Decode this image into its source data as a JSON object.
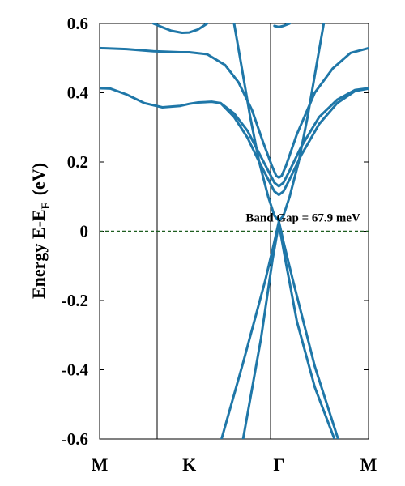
{
  "chart_data": {
    "type": "line",
    "title": "",
    "xlabel": "",
    "ylabel": "Energy E-E",
    "ylabel_subscript": "F",
    "ylabel_unit": "(eV)",
    "ylim": [
      -0.6,
      0.6
    ],
    "yticks": [
      -0.6,
      -0.4,
      -0.2,
      0,
      0.2,
      0.4,
      0.6
    ],
    "ytick_labels": [
      "-0.6",
      "-0.4",
      "-0.2",
      "0",
      "0.2",
      "0.4",
      "0.6"
    ],
    "xlim": [
      0,
      3
    ],
    "xticks": [
      {
        "x": 0,
        "label": "M"
      },
      {
        "x": 1,
        "label": "K"
      },
      {
        "x": 2,
        "label": "Γ"
      },
      {
        "x": 3,
        "label": "M"
      }
    ],
    "fermi_level": 0,
    "annotation": {
      "text": "Band Gap = 67.9 meV",
      "x": 1.63,
      "y": 0.028
    },
    "colors": {
      "band": "#1f77a8",
      "fermi": "#1e5e20",
      "frame": "#000000"
    },
    "series": [
      {
        "points": [
          [
            0,
            0.413
          ],
          [
            0.12,
            0.412
          ],
          [
            0.3,
            0.395
          ],
          [
            0.5,
            0.37
          ],
          [
            0.7,
            0.358
          ],
          [
            0.9,
            0.362
          ],
          [
            1.0,
            0.368
          ],
          [
            1.1,
            0.372
          ],
          [
            1.25,
            0.374
          ],
          [
            1.35,
            0.37
          ],
          [
            1.5,
            0.33
          ],
          [
            1.65,
            0.27
          ],
          [
            1.78,
            0.2
          ],
          [
            1.88,
            0.15
          ],
          [
            1.95,
            0.115
          ],
          [
            2.0,
            0.105
          ],
          [
            2.05,
            0.115
          ],
          [
            2.12,
            0.15
          ],
          [
            2.25,
            0.22
          ],
          [
            2.45,
            0.31
          ],
          [
            2.65,
            0.37
          ],
          [
            2.85,
            0.405
          ],
          [
            3.0,
            0.412
          ]
        ]
      },
      {
        "points": [
          [
            1.35,
            0.37
          ],
          [
            1.5,
            0.34
          ],
          [
            1.65,
            0.29
          ],
          [
            1.78,
            0.225
          ],
          [
            1.88,
            0.175
          ],
          [
            1.95,
            0.14
          ],
          [
            2.0,
            0.13
          ],
          [
            2.05,
            0.14
          ],
          [
            2.12,
            0.175
          ],
          [
            2.25,
            0.245
          ],
          [
            2.45,
            0.33
          ],
          [
            2.65,
            0.38
          ],
          [
            2.85,
            0.408
          ],
          [
            3.0,
            0.413
          ]
        ]
      },
      {
        "points": [
          [
            0,
            0.529
          ],
          [
            0.3,
            0.526
          ],
          [
            0.6,
            0.52
          ],
          [
            0.9,
            0.517
          ],
          [
            1.0,
            0.517
          ],
          [
            1.2,
            0.511
          ],
          [
            1.4,
            0.48
          ],
          [
            1.55,
            0.43
          ],
          [
            1.7,
            0.35
          ],
          [
            1.82,
            0.26
          ],
          [
            1.92,
            0.19
          ],
          [
            1.97,
            0.16
          ],
          [
            2.0,
            0.155
          ],
          [
            2.03,
            0.16
          ],
          [
            2.08,
            0.19
          ],
          [
            2.2,
            0.28
          ],
          [
            2.4,
            0.4
          ],
          [
            2.6,
            0.47
          ],
          [
            2.8,
            0.515
          ],
          [
            3.0,
            0.529
          ]
        ]
      },
      {
        "points": [
          [
            0.6,
            0.6
          ],
          [
            0.68,
            0.591
          ],
          [
            0.8,
            0.579
          ],
          [
            0.92,
            0.573
          ],
          [
            1.0,
            0.574
          ],
          [
            1.1,
            0.583
          ],
          [
            1.2,
            0.6
          ]
        ]
      },
      {
        "points": [
          [
            1.95,
            0.593
          ],
          [
            2.0,
            0.59
          ],
          [
            2.05,
            0.593
          ],
          [
            2.12,
            0.6
          ]
        ]
      },
      {
        "points": [
          [
            1.5,
            0.6
          ],
          [
            1.58,
            0.48
          ],
          [
            1.68,
            0.33
          ],
          [
            1.78,
            0.2
          ],
          [
            1.88,
            0.1
          ],
          [
            1.95,
            0.045
          ],
          [
            2.0,
            0.03
          ],
          [
            2.05,
            0.045
          ],
          [
            2.12,
            0.1
          ],
          [
            2.22,
            0.2
          ],
          [
            2.32,
            0.33
          ],
          [
            2.42,
            0.48
          ],
          [
            2.5,
            0.6
          ]
        ]
      },
      {
        "points": [
          [
            1.36,
            -0.6
          ],
          [
            1.6,
            -0.38
          ],
          [
            1.85,
            -0.14
          ],
          [
            1.95,
            -0.03
          ],
          [
            2.0,
            0.028
          ],
          [
            2.05,
            -0.03
          ],
          [
            2.15,
            -0.135
          ],
          [
            2.4,
            -0.39
          ],
          [
            2.66,
            -0.6
          ]
        ]
      },
      {
        "points": [
          [
            1.6,
            -0.6
          ],
          [
            1.8,
            -0.31
          ],
          [
            1.93,
            -0.08
          ],
          [
            2.0,
            0.022
          ],
          [
            2.07,
            -0.08
          ],
          [
            2.2,
            -0.26
          ],
          [
            2.4,
            -0.45
          ],
          [
            2.62,
            -0.6
          ]
        ]
      }
    ]
  }
}
